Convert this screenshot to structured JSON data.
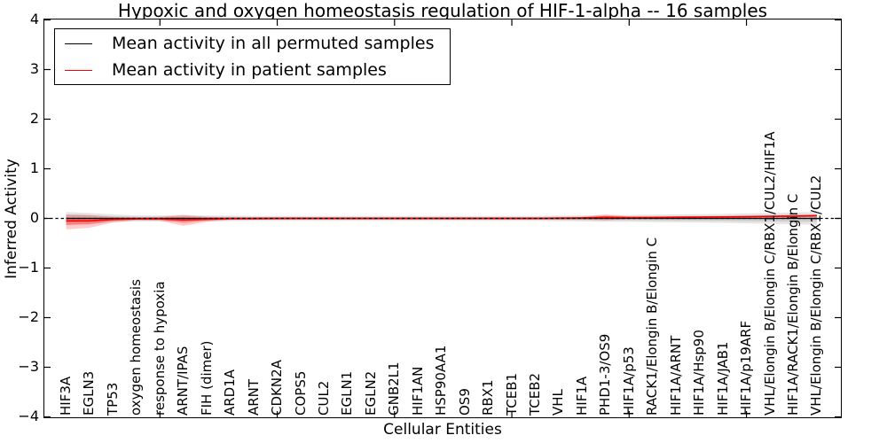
{
  "title": "Hypoxic and oxygen homeostasis regulation of HIF-1-alpha -- 16 samples",
  "axes": {
    "ylabel": "Inferred Activity",
    "xlabel": "Cellular Entities",
    "ytick_labels": [
      "4",
      "3",
      "2",
      "1",
      "0",
      "−1",
      "−2",
      "−3",
      "−4"
    ],
    "ytick_values": [
      4,
      3,
      2,
      1,
      0,
      -1,
      -2,
      -3,
      -4
    ]
  },
  "legend": {
    "items": [
      {
        "label": "Mean activity in all permuted samples",
        "color": "#000000"
      },
      {
        "label": "Mean activity in patient samples",
        "color": "#ff0000"
      }
    ]
  },
  "colors": {
    "frame": "#000000",
    "patient_line": "#ff0000",
    "permuted_line": "#000000",
    "patient_band": "rgba(255,0,0,0.20)",
    "patient_band_inner": "rgba(255,0,0,0.28)",
    "permuted_band": "rgba(0,0,0,0.10)",
    "zero_line": "#000000"
  },
  "chart_data": {
    "type": "line",
    "title": "Hypoxic and oxygen homeostasis regulation of HIF-1-alpha -- 16 samples",
    "xlabel": "Cellular Entities",
    "ylabel": "Inferred Activity",
    "ylim": [
      -4,
      4
    ],
    "grid": false,
    "legend_position": "upper left",
    "xtick_positions": [
      5,
      10,
      15,
      20,
      25,
      30
    ],
    "categories": [
      "HIF3A",
      "EGLN3",
      "TP53",
      "oxygen homeostasis",
      "response to hypoxia",
      "ARNT/IPAS",
      "FIH (dimer)",
      "ARD1A",
      "ARNT",
      "CDKN2A",
      "COPS5",
      "CUL2",
      "EGLN1",
      "EGLN2",
      "GNB2L1",
      "HIF1AN",
      "HSP90AA1",
      "OS9",
      "RBX1",
      "TCEB1",
      "TCEB2",
      "VHL",
      "HIF1A",
      "PHD1-3/OS9",
      "HIF1A/p53",
      "RACK1/Elongin B/Elongin C",
      "HIF1A/ARNT",
      "HIF1A/Hsp90",
      "HIF1A/JAB1",
      "HIF1A/p19ARF",
      "VHL/Elongin B/Elongin C/RBX1/CUL2/HIF1A",
      "HIF1A/RACK1/Elongin B/Elongin C",
      "VHL/Elongin B/Elongin C/RBX1/CUL2"
    ],
    "series": [
      {
        "name": "Mean activity in all permuted samples",
        "color": "#000000",
        "values": [
          0,
          0,
          0,
          0,
          0,
          0,
          0,
          0,
          0,
          0,
          0,
          0,
          0,
          0,
          0,
          0,
          0,
          0,
          0,
          0,
          0,
          0,
          0,
          0,
          0,
          0,
          0,
          0,
          0,
          0,
          0,
          0,
          0
        ],
        "band_upper": [
          0.13,
          0.11,
          0.08,
          0.06,
          0.06,
          0.07,
          0.06,
          0.055,
          0.05,
          0.05,
          0.05,
          0.05,
          0.05,
          0.05,
          0.05,
          0.05,
          0.05,
          0.05,
          0.05,
          0.05,
          0.05,
          0.055,
          0.06,
          0.07,
          0.07,
          0.075,
          0.08,
          0.085,
          0.09,
          0.1,
          0.11,
          0.12,
          0.13
        ],
        "band_lower": [
          -0.13,
          -0.11,
          -0.08,
          -0.06,
          -0.06,
          -0.07,
          -0.06,
          -0.055,
          -0.05,
          -0.05,
          -0.05,
          -0.05,
          -0.05,
          -0.05,
          -0.05,
          -0.05,
          -0.05,
          -0.05,
          -0.05,
          -0.05,
          -0.05,
          -0.055,
          -0.06,
          -0.07,
          -0.07,
          -0.075,
          -0.08,
          -0.085,
          -0.09,
          -0.1,
          -0.11,
          -0.12,
          -0.13
        ]
      },
      {
        "name": "Mean activity in patient samples",
        "color": "#ff0000",
        "values": [
          -0.05,
          -0.05,
          -0.02,
          -0.01,
          -0.01,
          -0.03,
          -0.015,
          -0.005,
          -0.005,
          0,
          0,
          0,
          0,
          0,
          0,
          0,
          0,
          0,
          0,
          0,
          0,
          0.005,
          0.01,
          0.02,
          0.015,
          0.018,
          0.022,
          0.026,
          0.03,
          0.033,
          0.04,
          0.045,
          0.055
        ],
        "band_upper": [
          0.08,
          0.07,
          0.03,
          0.02,
          0.03,
          0.07,
          0.03,
          0.02,
          0.02,
          0.015,
          0.015,
          0.015,
          0.015,
          0.015,
          0.015,
          0.015,
          0.015,
          0.015,
          0.015,
          0.015,
          0.015,
          0.02,
          0.03,
          0.08,
          0.04,
          0.035,
          0.04,
          0.045,
          0.05,
          0.05,
          0.06,
          0.07,
          0.08
        ],
        "band_lower": [
          -0.22,
          -0.19,
          -0.08,
          -0.04,
          -0.05,
          -0.15,
          -0.07,
          -0.03,
          -0.03,
          -0.025,
          -0.02,
          -0.02,
          -0.02,
          -0.02,
          -0.02,
          -0.02,
          -0.02,
          -0.02,
          -0.02,
          -0.02,
          -0.02,
          -0.02,
          -0.02,
          -0.04,
          -0.01,
          0.0,
          0.005,
          0.01,
          0.01,
          0.015,
          0.02,
          0.02,
          0.03
        ]
      }
    ],
    "zero_line": {
      "y": 0,
      "style": "dashed",
      "color": "#000000"
    }
  }
}
